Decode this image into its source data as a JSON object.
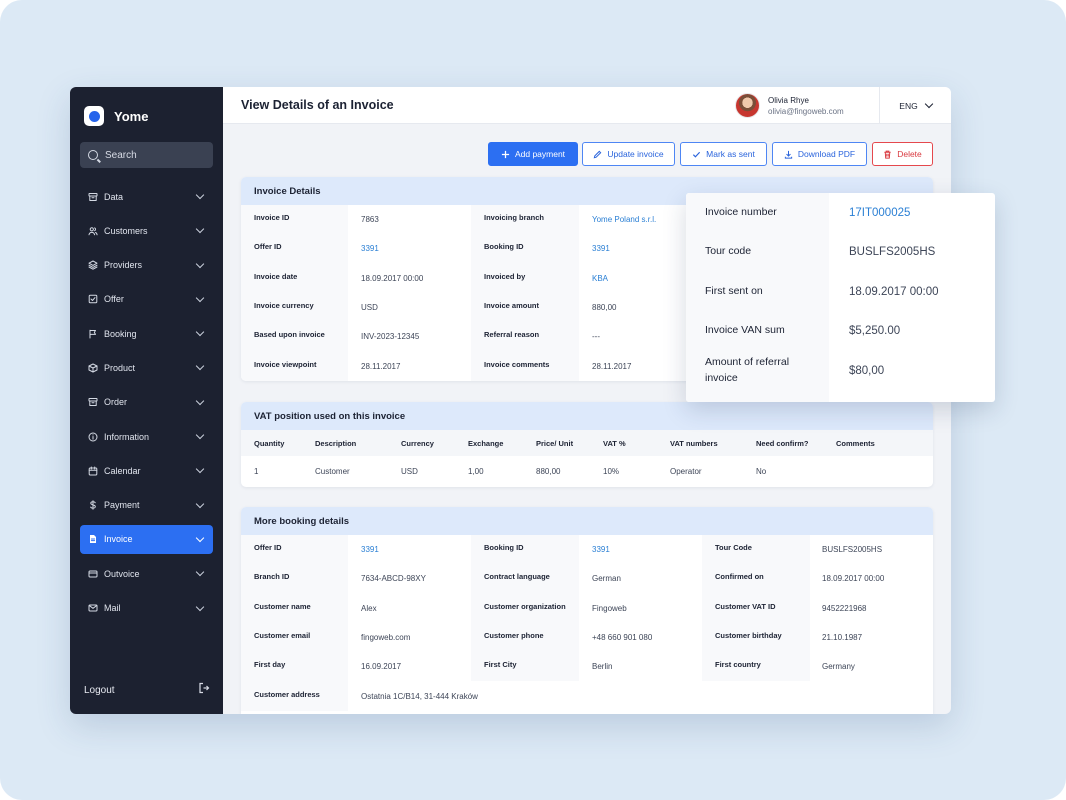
{
  "app": {
    "brand": "Yome"
  },
  "search": {
    "placeholder": "Search"
  },
  "sidebar": {
    "items": [
      {
        "label": "Data",
        "icon": "archive-icon"
      },
      {
        "label": "Customers",
        "icon": "users-icon"
      },
      {
        "label": "Providers",
        "icon": "layers-icon"
      },
      {
        "label": "Offer",
        "icon": "checkbox-icon"
      },
      {
        "label": "Booking",
        "icon": "flag-icon"
      },
      {
        "label": "Product",
        "icon": "box-icon"
      },
      {
        "label": "Order",
        "icon": "archive-icon"
      },
      {
        "label": "Information",
        "icon": "info-icon"
      },
      {
        "label": "Calendar",
        "icon": "calendar-icon"
      },
      {
        "label": "Payment",
        "icon": "dollar-icon"
      },
      {
        "label": "Invoice",
        "icon": "document-icon",
        "active": true
      },
      {
        "label": "Outvoice",
        "icon": "card-icon"
      },
      {
        "label": "Mail",
        "icon": "mail-icon"
      }
    ],
    "logout": "Logout"
  },
  "header": {
    "title": "View Details of an Invoice",
    "user_name": "Olivia Rhye",
    "user_email": "olivia@fingoweb.com",
    "language": "ENG"
  },
  "toolbar": {
    "add_payment": "Add payment",
    "update_invoice": "Update invoice",
    "mark_as_sent": "Mark as sent",
    "download_pdf": "Download PDF",
    "delete": "Delete"
  },
  "invoice_details": {
    "title": "Invoice Details",
    "rows": [
      [
        {
          "label": "Invoice ID",
          "value": "7863"
        },
        {
          "label": "Invoicing branch",
          "value": "Yome Poland s.r.l.",
          "link": true
        }
      ],
      [
        {
          "label": "Offer ID",
          "value": "3391",
          "link": true
        },
        {
          "label": "Booking ID",
          "value": "3391",
          "link": true
        }
      ],
      [
        {
          "label": "Invoice date",
          "value": "18.09.2017 00:00"
        },
        {
          "label": "Invoiced by",
          "value": "KBA",
          "link": true
        }
      ],
      [
        {
          "label": "Invoice currency",
          "value": "USD"
        },
        {
          "label": "Invoice amount",
          "value": "880,00"
        }
      ],
      [
        {
          "label": "Based upon invoice",
          "value": "INV-2023-12345"
        },
        {
          "label": "Referral reason",
          "value": "---"
        }
      ],
      [
        {
          "label": "Invoice viewpoint",
          "value": "28.11.2017"
        },
        {
          "label": "Invoice comments",
          "value": "28.11.2017"
        }
      ]
    ]
  },
  "popover": {
    "rows": [
      {
        "label": "Invoice number",
        "value": "17IT000025",
        "link": true
      },
      {
        "label": "Tour code",
        "value": "BUSLFS2005HS"
      },
      {
        "label": "First sent on",
        "value": "18.09.2017 00:00"
      },
      {
        "label": "Invoice VAN sum",
        "value": "$5,250.00"
      },
      {
        "label": "Amount of referral invoice",
        "value": "$80,00"
      }
    ]
  },
  "vat": {
    "title": "VAT position used on this invoice",
    "columns": [
      "Quantity",
      "Description",
      "Currency",
      "Exchange",
      "Price/ Unit",
      "VAT %",
      "VAT numbers",
      "Need confirm?",
      "Comments"
    ],
    "rows": [
      [
        "1",
        "Customer",
        "USD",
        "1,00",
        "880,00",
        "10%",
        "Operator",
        "No",
        ""
      ]
    ]
  },
  "booking": {
    "title": "More booking details",
    "rows": [
      [
        {
          "label": "Offer ID",
          "value": "3391",
          "link": true
        },
        {
          "label": "Booking ID",
          "value": "3391",
          "link": true
        },
        {
          "label": "Tour Code",
          "value": "BUSLFS2005HS"
        }
      ],
      [
        {
          "label": "Branch ID",
          "value": "7634-ABCD-98XY"
        },
        {
          "label": "Contract language",
          "value": "German"
        },
        {
          "label": "Confirmed on",
          "value": "18.09.2017 00:00"
        }
      ],
      [
        {
          "label": "Customer name",
          "value": "Alex"
        },
        {
          "label": "Customer organization",
          "value": "Fingoweb"
        },
        {
          "label": "Customer VAT ID",
          "value": "9452221968"
        }
      ],
      [
        {
          "label": "Customer email",
          "value": "fingoweb.com"
        },
        {
          "label": "Customer phone",
          "value": "+48 660 901 080"
        },
        {
          "label": "Customer birthday",
          "value": "21.10.1987"
        }
      ],
      [
        {
          "label": "First day",
          "value": "16.09.2017"
        },
        {
          "label": "First City",
          "value": "Berlin"
        },
        {
          "label": "First country",
          "value": "Germany"
        }
      ],
      [
        {
          "label": "Customer address",
          "value": "Ostatnia 1C/B14, 31-444 Kraków"
        }
      ]
    ]
  }
}
